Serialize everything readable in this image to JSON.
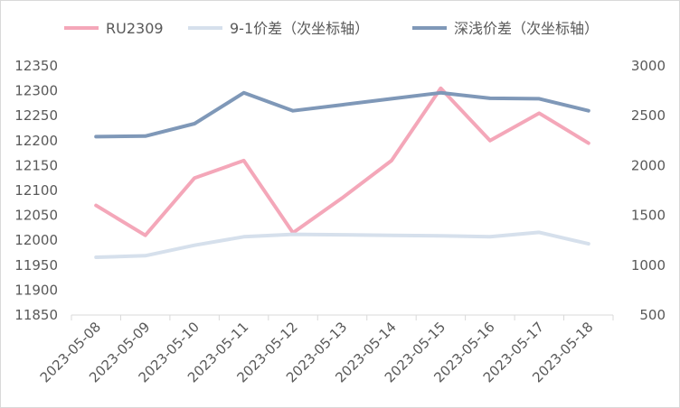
{
  "chart_data": {
    "type": "line",
    "categories": [
      "2023-05-08",
      "2023-05-09",
      "2023-05-10",
      "2023-05-11",
      "2023-05-12",
      "2023-05-13",
      "2023-05-14",
      "2023-05-15",
      "2023-05-16",
      "2023-05-17",
      "2023-05-18"
    ],
    "series": [
      {
        "name": "RU2309",
        "axis": "left",
        "color": "#f4a7b9",
        "values": [
          12070,
          12010,
          12125,
          12160,
          12015,
          12085,
          12160,
          12305,
          12200,
          12255,
          12195
        ]
      },
      {
        "name": "9-1价差（次坐标轴）",
        "axis": "right",
        "color": "#d6e0ec",
        "values": [
          1080,
          1095,
          1200,
          1285,
          1310,
          1305,
          1300,
          1295,
          1285,
          1330,
          1215
        ]
      },
      {
        "name": "深浅价差（次坐标轴）",
        "axis": "right",
        "color": "#7f98b8",
        "values": [
          2290,
          2295,
          2420,
          2730,
          2550,
          2610,
          2670,
          2730,
          2675,
          2670,
          2550
        ]
      }
    ],
    "yticks_left": [
      "12350",
      "12300",
      "12250",
      "12200",
      "12150",
      "12100",
      "12050",
      "12000",
      "11950",
      "11900",
      "11850"
    ],
    "yticks_right": [
      "3000",
      "2500",
      "2000",
      "1500",
      "1000",
      "500"
    ],
    "ylim_left": [
      11850,
      12350
    ],
    "ylim_right": [
      500,
      3000
    ],
    "grid": false,
    "legend": "top"
  }
}
